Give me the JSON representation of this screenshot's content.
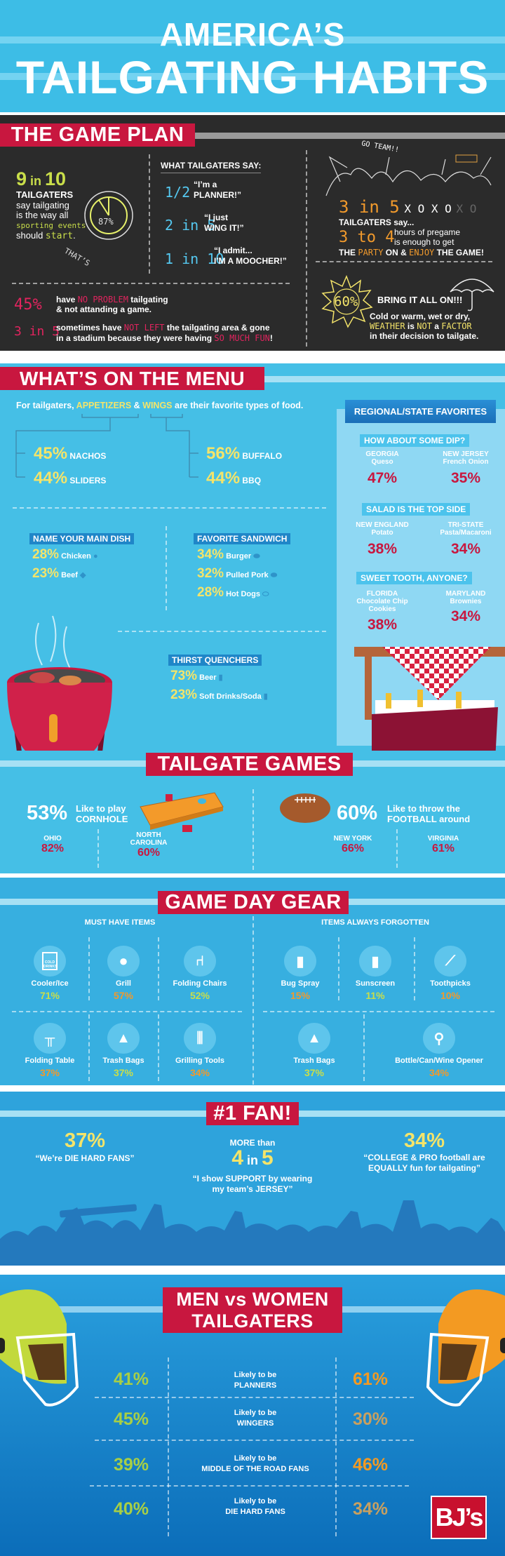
{
  "header": {
    "line1": "AMERICA’S",
    "line2": "TAILGATING HABITS"
  },
  "game_plan": {
    "title": "THE GAME PLAN",
    "nine": {
      "stat_a": "9",
      "stat_b": " in ",
      "stat_c": "10",
      "l1": "TAILGATERS",
      "l2": "say tailgating",
      "l3": "is the way all",
      "l4": "sporting events",
      "l5a": "should ",
      "l5b": "start",
      "l5c": ".",
      "circle": "87%",
      "thats": "THAT’S"
    },
    "say": {
      "title": "WHAT TAILGATERS SAY:",
      "items": [
        {
          "stat": "1/2",
          "q1": "“I’m a",
          "q2": "PLANNER!”"
        },
        {
          "stat": "2 in 5",
          "q1": "“I just",
          "q2": "WING IT!”"
        },
        {
          "stat": "1 in 10",
          "q1": "“I admit...",
          "q2": "I’M A MOOCHER!”"
        }
      ]
    },
    "go_team": "GO TEAM!!",
    "party": {
      "stat": "3 in 5",
      "xo": "X O X O",
      "xo_faded": "X O",
      "l1": "TAILGATERS say...",
      "stat2": "3 to 4",
      "h1": "hours of pregame",
      "h2": "is enough to get",
      "p1": "THE ",
      "p2": "PARTY",
      "p3": " ON & ",
      "p4": "ENJOY",
      "p5": " THE GAME!"
    },
    "weather": {
      "stat": "60%",
      "headline": "BRING IT ALL ON!!!",
      "l1": "Cold or warm, wet or dry,",
      "l2a": "WEATHER",
      "l2b": " is ",
      "l2c": "NOT",
      "l2d": " a ",
      "l2e": "FACTOR",
      "l3": "in their decision to tailgate."
    },
    "no_problem": {
      "stat": "45%",
      "a": "have ",
      "b": "NO PROBLEM",
      "c": " tailgating",
      "l2": "& not attanding a game."
    },
    "not_left": {
      "stat": "3 in 5",
      "a": "sometimes have ",
      "b": "NOT LEFT",
      "c": " the tailgating area & gone",
      "d": "in a stadium because they were having ",
      "e": "SO MUCH FUN",
      "f": "!"
    }
  },
  "menu": {
    "title": "WHAT’S ON THE MENU",
    "intro": {
      "a": "For tailgaters, ",
      "b": "APPETIZERS",
      "c": " & ",
      "d": "WINGS",
      "e": " are their favorite types of food."
    },
    "appetizers": [
      {
        "pct": "45%",
        "name": "NACHOS"
      },
      {
        "pct": "44%",
        "name": "SLIDERS"
      }
    ],
    "wings": [
      {
        "pct": "56%",
        "name": "BUFFALO"
      },
      {
        "pct": "44%",
        "name": "BBQ"
      }
    ],
    "main_dish": {
      "title": "NAME YOUR MAIN DISH",
      "items": [
        {
          "pct": "28%",
          "name": "Chicken"
        },
        {
          "pct": "23%",
          "name": "Beef"
        }
      ]
    },
    "sandwich": {
      "title": "FAVORITE SANDWICH",
      "items": [
        {
          "pct": "34%",
          "name": "Burger"
        },
        {
          "pct": "32%",
          "name": "Pulled Pork"
        },
        {
          "pct": "28%",
          "name": "Hot Dogs"
        }
      ]
    },
    "drinks": {
      "title": "THIRST QUENCHERS",
      "items": [
        {
          "pct": "73%",
          "name": "Beer"
        },
        {
          "pct": "23%",
          "name": "Soft Drinks/Soda"
        }
      ]
    },
    "regional": {
      "title": "REGIONAL/STATE FAVORITES",
      "groups": [
        {
          "title": "HOW ABOUT SOME DIP?",
          "items": [
            {
              "state": "GEORGIA",
              "food": "Queso",
              "pct": "47%"
            },
            {
              "state": "NEW JERSEY",
              "food": "French Onion",
              "pct": "35%"
            }
          ]
        },
        {
          "title": "SALAD IS THE TOP SIDE",
          "items": [
            {
              "state": "NEW ENGLAND",
              "food": "Potato",
              "pct": "38%"
            },
            {
              "state": "TRI-STATE",
              "food": "Pasta/Macaroni",
              "pct": "34%"
            }
          ]
        },
        {
          "title": "SWEET TOOTH, ANYONE?",
          "items": [
            {
              "state": "FLORIDA",
              "food": "Chocolate Chip Cookies",
              "pct": "38%"
            },
            {
              "state": "MARYLAND",
              "food": "Brownies",
              "pct": "34%"
            }
          ]
        }
      ]
    }
  },
  "games": {
    "title": "TAILGATE GAMES",
    "cornhole": {
      "pct": "53%",
      "l1": "Like to play",
      "l2": "CORNHOLE",
      "states": [
        {
          "name": "OHIO",
          "pct": "82%"
        },
        {
          "name": "NORTH CAROLINA",
          "pct": "60%"
        }
      ]
    },
    "football": {
      "pct": "60%",
      "l1": "Like to throw the",
      "l2": "FOOTBALL around",
      "states": [
        {
          "name": "NEW YORK",
          "pct": "66%"
        },
        {
          "name": "VIRGINIA",
          "pct": "61%"
        }
      ]
    }
  },
  "gear": {
    "title": "GAME DAY GEAR",
    "must_title": "MUST HAVE ITEMS",
    "forgot_title": "ITEMS ALWAYS FORGOTTEN",
    "cooler_label": "COLD DRINKS",
    "must": [
      {
        "name": "Cooler/Ice",
        "pct": "71%"
      },
      {
        "name": "Grill",
        "pct": "57%"
      },
      {
        "name": "Folding Chairs",
        "pct": "52%"
      },
      {
        "name": "Folding Table",
        "pct": "37%"
      },
      {
        "name": "Trash Bags",
        "pct": "37%"
      },
      {
        "name": "Grilling Tools",
        "pct": "34%"
      }
    ],
    "forgot": [
      {
        "name": "Bug Spray",
        "pct": "15%"
      },
      {
        "name": "Sunscreen",
        "pct": "11%"
      },
      {
        "name": "Toothpicks",
        "pct": "10%"
      },
      {
        "name": "Trash Bags",
        "pct": "37%"
      },
      {
        "name": "Bottle/Can/Wine Opener",
        "pct": "34%"
      }
    ]
  },
  "fan": {
    "title": "#1 FAN!",
    "left": {
      "pct": "37%",
      "quote": "“We’re DIE HARD FANS”"
    },
    "middle": {
      "pre": "MORE than",
      "a": "4",
      "b": " in ",
      "c": "5",
      "q1": "“I show SUPPORT by wearing",
      "q2": "my team’s JERSEY”"
    },
    "right": {
      "pct": "34%",
      "q1": "“COLLEGE & PRO football are",
      "q2": "EQUALLY fun for tailgating”"
    }
  },
  "gender": {
    "title1": "MEN vs WOMEN",
    "title2": "TAILGATERS",
    "rows": [
      {
        "men": "41%",
        "l1": "Likely to be",
        "l2": "PLANNERS",
        "women": "61%"
      },
      {
        "men": "45%",
        "l1": "Likely to be",
        "l2": "WINGERS",
        "women": "30%"
      },
      {
        "men": "39%",
        "l1": "Likely to be",
        "l2": "MIDDLE OF THE ROAD FANS",
        "women": "46%"
      },
      {
        "men": "40%",
        "l1": "Likely to be",
        "l2": "DIE HARD FANS",
        "women": "34%"
      }
    ],
    "logo": "BJ’s"
  },
  "colors": {
    "tag_red": "#c8173f",
    "chalkboard": "#2b2b2b",
    "sky": "#45bfe6",
    "yellow": "#f4e46a",
    "men": "#a8cf45",
    "women": "#f19a2c"
  }
}
